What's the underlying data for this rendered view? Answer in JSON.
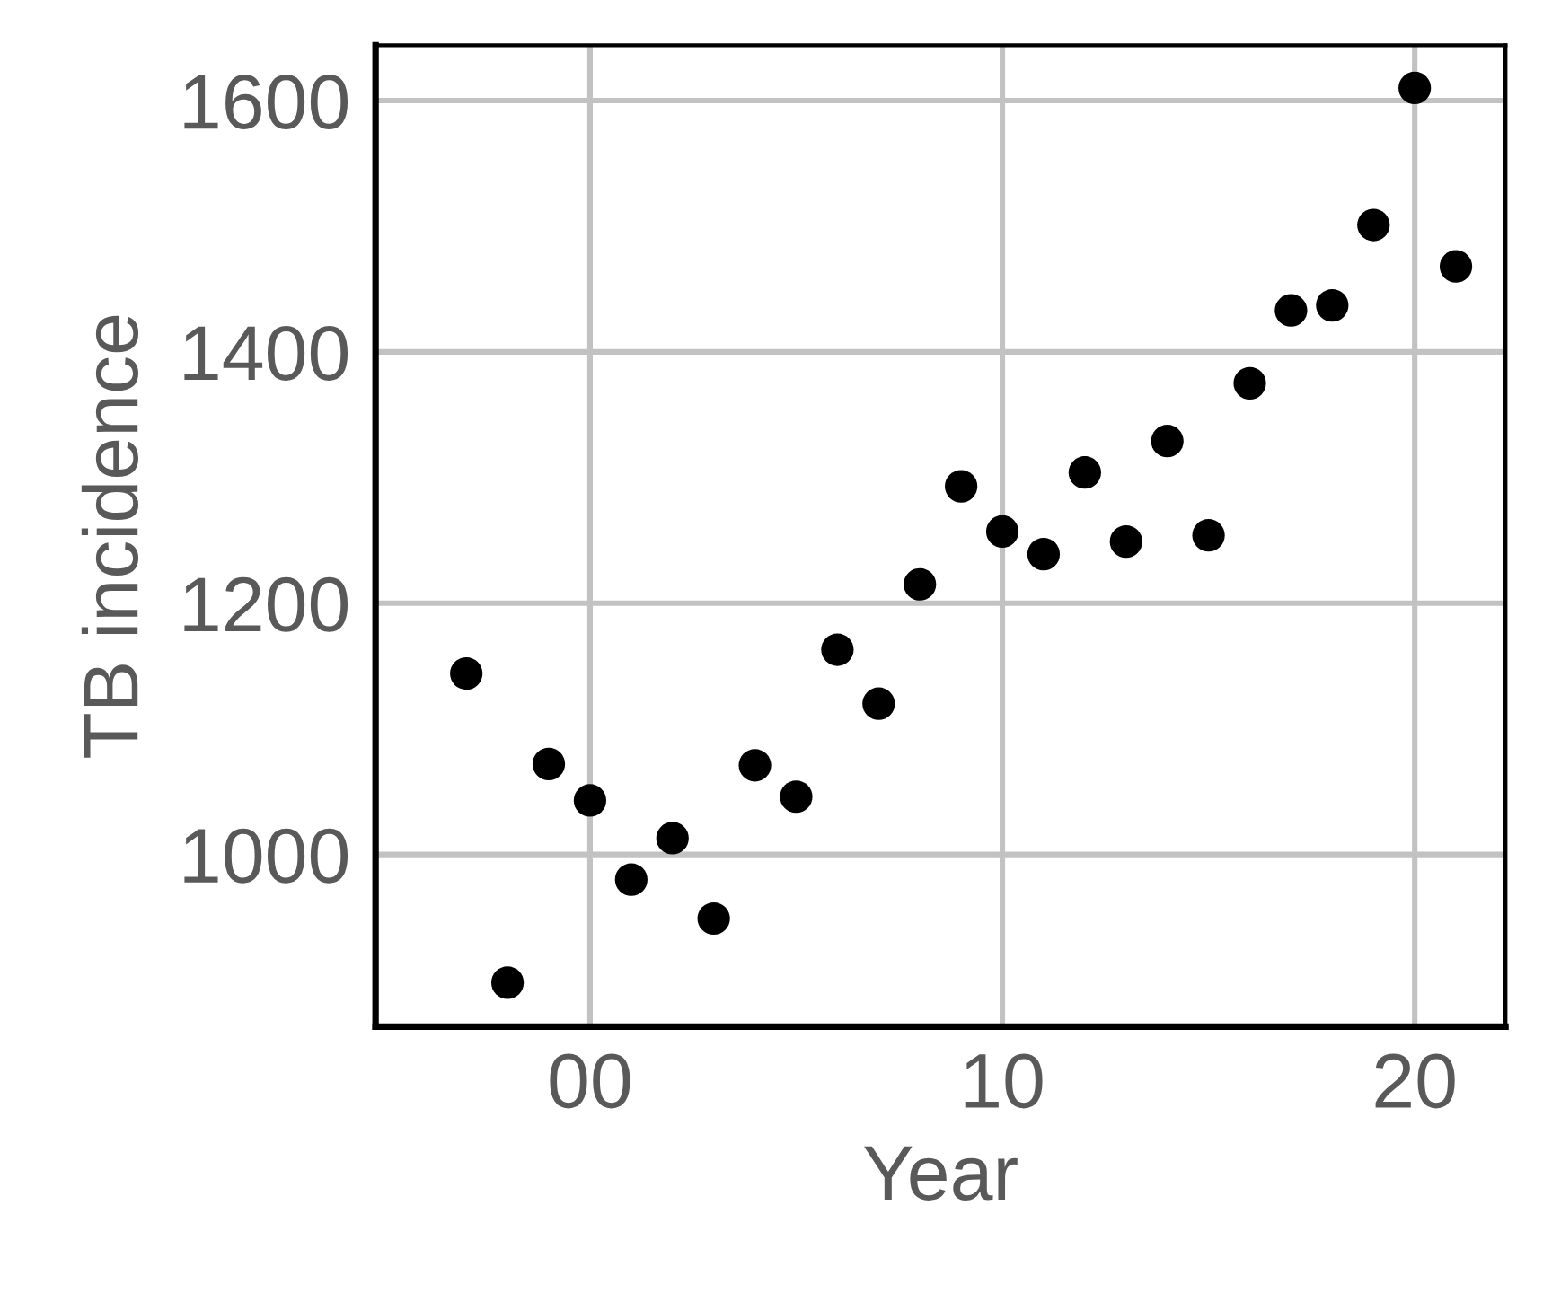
{
  "chart_data": {
    "type": "scatter",
    "xlabel": "Year",
    "ylabel": "TB incidence",
    "x": [
      1997,
      1998,
      1999,
      2000,
      2001,
      2002,
      2003,
      2004,
      2005,
      2006,
      2007,
      2008,
      2009,
      2010,
      2011,
      2012,
      2013,
      2014,
      2015,
      2016,
      2017,
      2018,
      2019,
      2020,
      2021
    ],
    "series": [
      {
        "color": "#000000",
        "values": [
          1144,
          898,
          1072,
          1043,
          980,
          1013,
          949,
          1071,
          1046,
          1163,
          1120,
          1215,
          1293,
          1257,
          1239,
          1304,
          1249,
          1329,
          1254,
          1375,
          1433,
          1437,
          1501,
          1610,
          1468
        ]
      }
    ],
    "marker": "circle",
    "xlim": [
      1994.8,
      2022.2
    ],
    "ylim": [
      863,
      1644
    ],
    "xticks": [
      {
        "value": 2000,
        "label": "00"
      },
      {
        "value": 2010,
        "label": "10"
      },
      {
        "value": 2020,
        "label": "20"
      }
    ],
    "yticks": [
      1000,
      1200,
      1400,
      1600
    ],
    "grid": true
  }
}
